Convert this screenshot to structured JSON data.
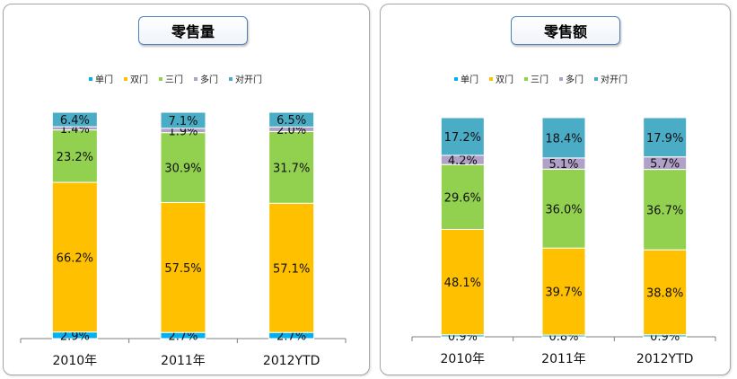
{
  "chart_data": [
    {
      "type": "bar",
      "stacked": true,
      "title": "零售量",
      "categories": [
        "2010年",
        "2011年",
        "2012YTD"
      ],
      "legend": {
        "placement": "top"
      },
      "series": [
        {
          "name": "单门",
          "color": "#00b0f0",
          "values": [
            2.9,
            2.7,
            2.7
          ],
          "labels": [
            "2.9%",
            "2.7%",
            "2.7%"
          ]
        },
        {
          "name": "双门",
          "color": "#ffc000",
          "values": [
            66.2,
            57.5,
            57.1
          ],
          "labels": [
            "66.2%",
            "57.5%",
            "57.1%"
          ]
        },
        {
          "name": "三门",
          "color": "#92d050",
          "values": [
            23.2,
            30.9,
            31.7
          ],
          "labels": [
            "23.2%",
            "30.9%",
            "31.7%"
          ]
        },
        {
          "name": "多门",
          "color": "#b1a0c7",
          "values": [
            1.4,
            1.9,
            2.0
          ],
          "labels": [
            "1.4%",
            "1.9%",
            "2.0%"
          ]
        },
        {
          "name": "对开门",
          "color": "#4bacc6",
          "values": [
            6.4,
            7.1,
            6.5
          ],
          "labels": [
            "6.4%",
            "7.1%",
            "6.5%"
          ]
        }
      ]
    },
    {
      "type": "bar",
      "stacked": true,
      "title": "零售额",
      "categories": [
        "2010年",
        "2011年",
        "2012YTD"
      ],
      "legend": {
        "placement": "top"
      },
      "series": [
        {
          "name": "单门",
          "color": "#00b0f0",
          "values": [
            0.9,
            0.8,
            0.9
          ],
          "labels": [
            "0.9%",
            "0.8%",
            "0.9%"
          ]
        },
        {
          "name": "双门",
          "color": "#ffc000",
          "values": [
            48.1,
            39.7,
            38.8
          ],
          "labels": [
            "48.1%",
            "39.7%",
            "38.8%"
          ]
        },
        {
          "name": "三门",
          "color": "#92d050",
          "values": [
            29.6,
            36.0,
            36.7
          ],
          "labels": [
            "29.6%",
            "36.0%",
            "36.7%"
          ]
        },
        {
          "name": "多门",
          "color": "#b1a0c7",
          "values": [
            4.2,
            5.1,
            5.7
          ],
          "labels": [
            "4.2%",
            "5.1%",
            "5.7%"
          ]
        },
        {
          "name": "对开门",
          "color": "#4bacc6",
          "values": [
            17.2,
            18.4,
            17.9
          ],
          "labels": [
            "17.2%",
            "18.4%",
            "17.9%"
          ]
        }
      ]
    }
  ]
}
